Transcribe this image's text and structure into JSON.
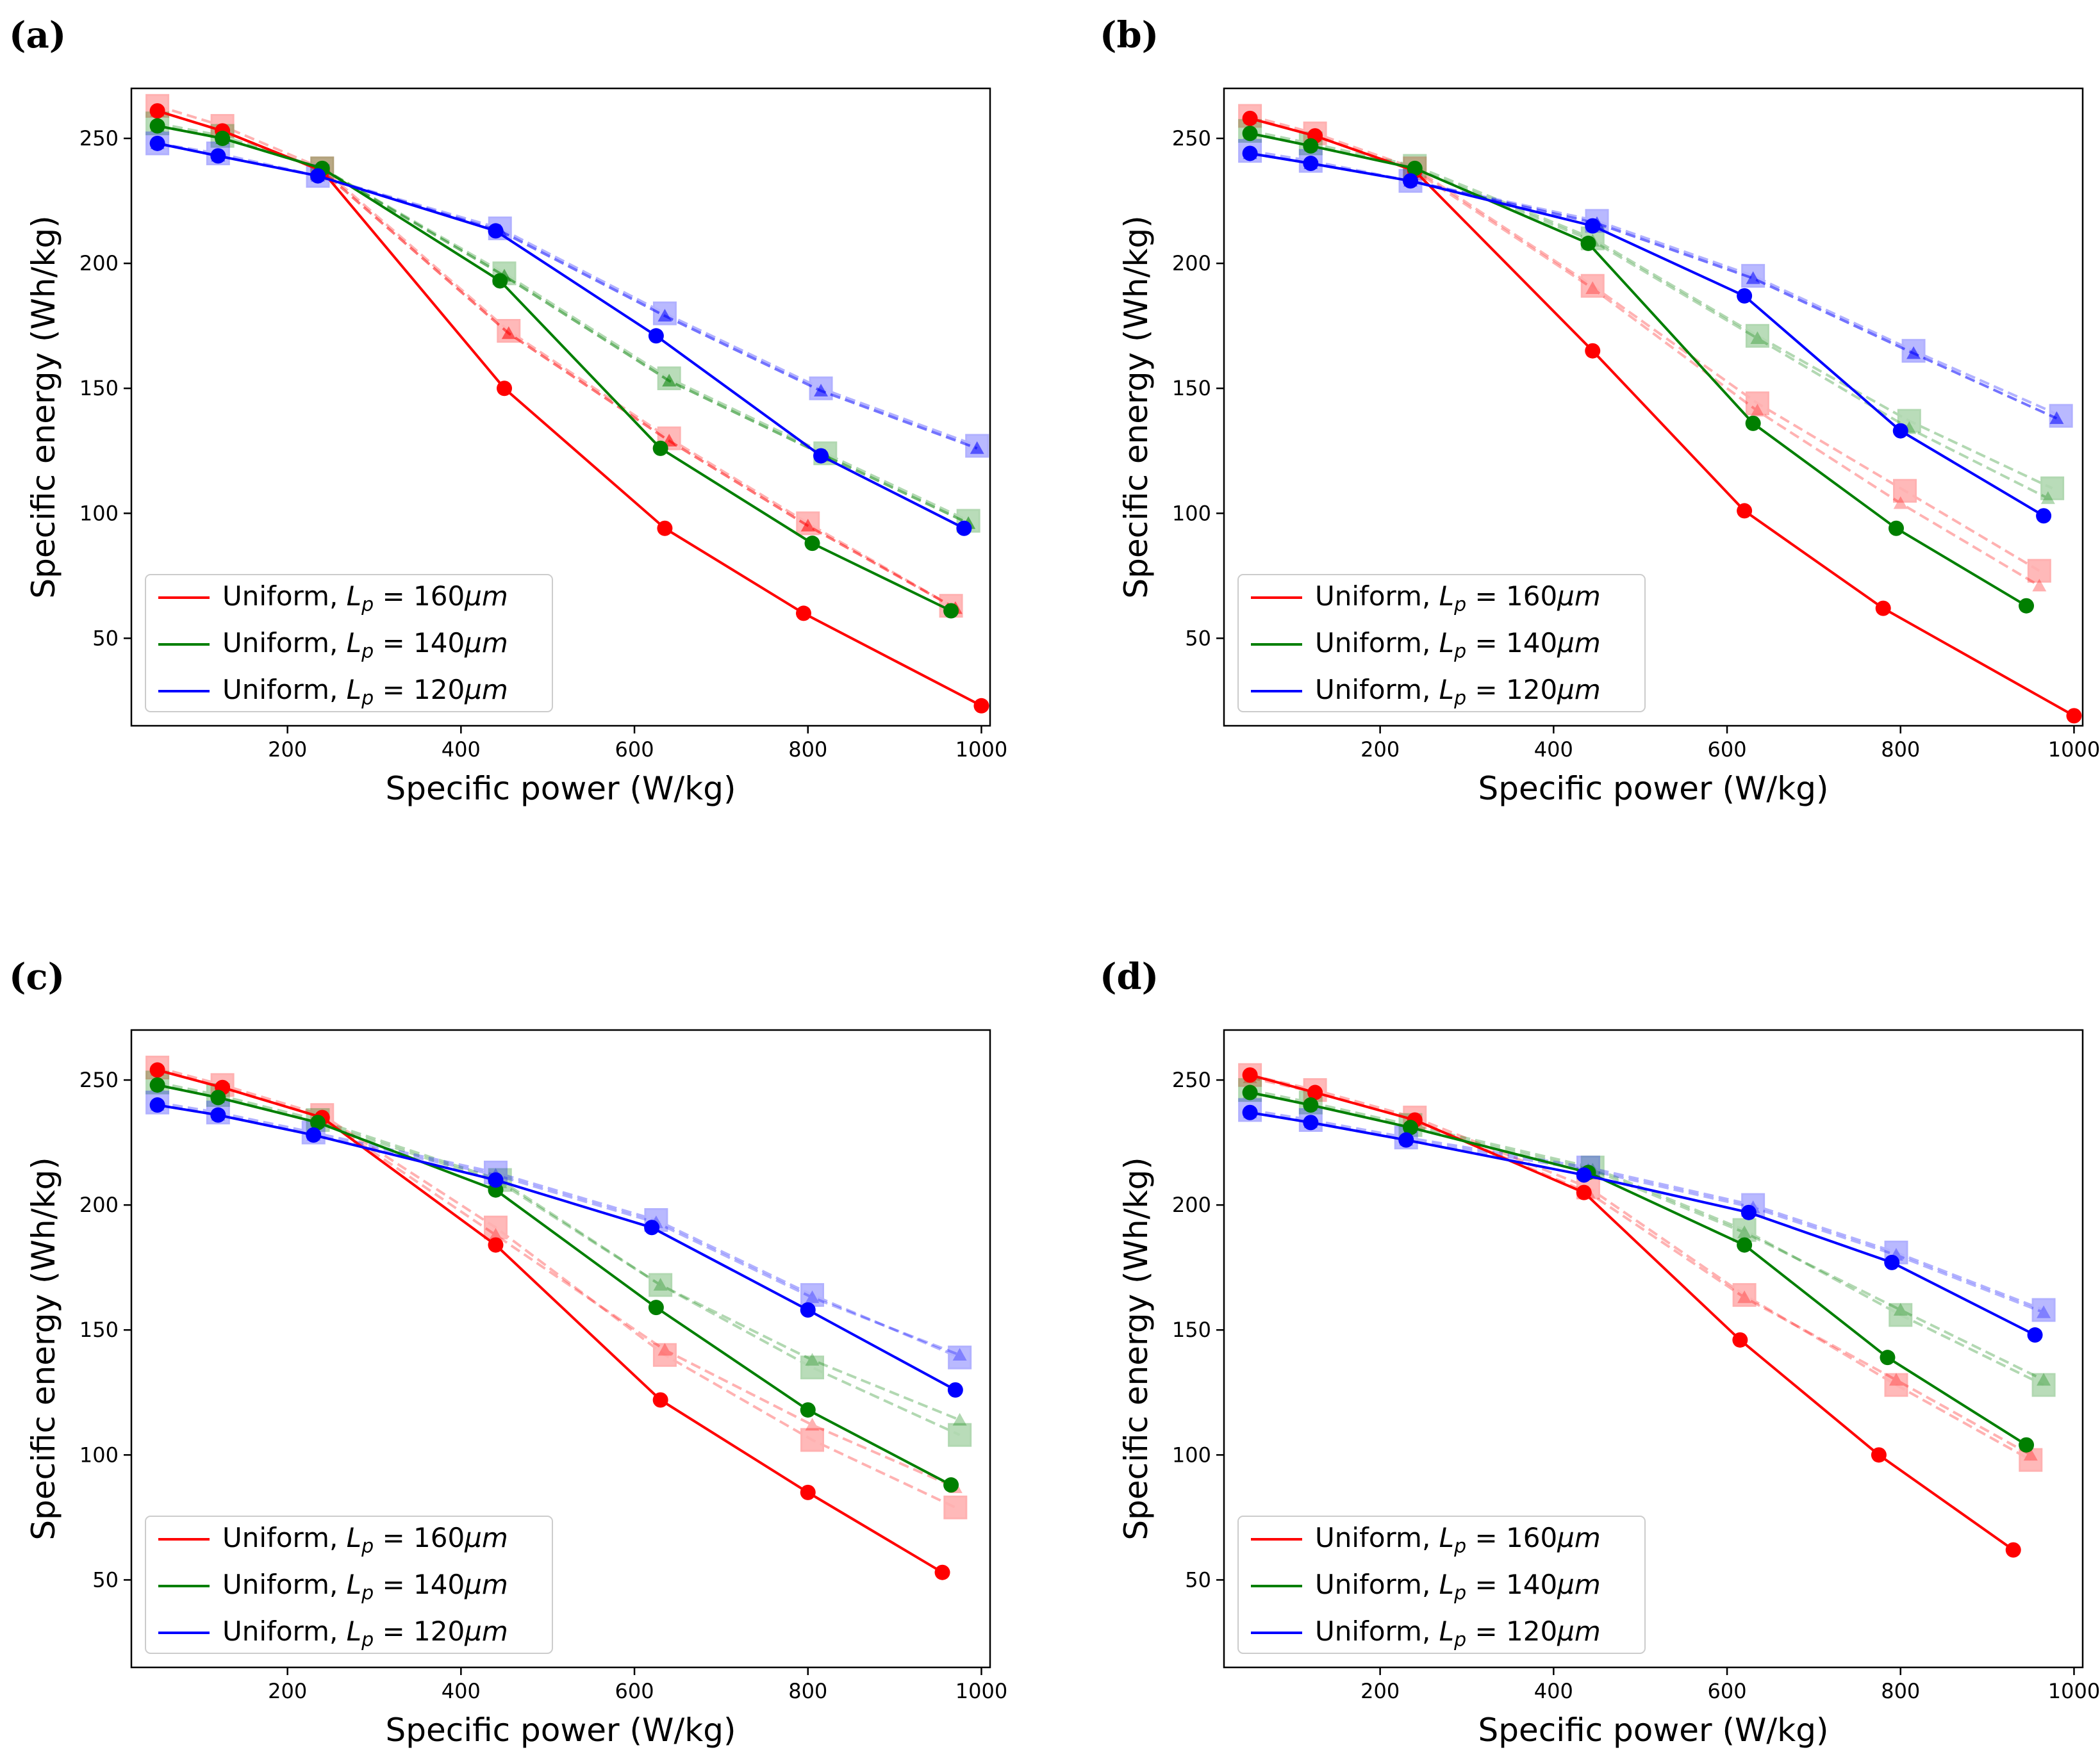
{
  "figure": {
    "panel_labels": [
      "(a)",
      "(b)",
      "(c)",
      "(d)"
    ],
    "colors": {
      "red": "#ff0000",
      "green": "#007f00",
      "blue": "#0000ff"
    },
    "legend_prefix": "Uniform, ",
    "legend_symbol": "L",
    "legend_subscript": "p",
    "legend_unit": "μm"
  },
  "chart_data": [
    {
      "type": "line",
      "panel": "(a)",
      "xlabel": "Specific power (W/kg)",
      "ylabel": "Specific energy (Wh/kg)",
      "xlim": [
        20,
        1010
      ],
      "ylim": [
        15,
        270
      ],
      "xticks": [
        200,
        400,
        600,
        800,
        1000
      ],
      "yticks": [
        50,
        100,
        150,
        200,
        250
      ],
      "legend": "lower-left",
      "series": [
        {
          "name": "Uniform, Lp = 160μm",
          "color": "red",
          "style": "solid",
          "marker": "circle",
          "x": [
            50,
            125,
            240,
            450,
            635,
            795,
            1000
          ],
          "y": [
            261,
            253,
            237,
            150,
            94,
            60,
            23
          ]
        },
        {
          "name": "Uniform, Lp = 140μm",
          "color": "green",
          "style": "solid",
          "marker": "circle",
          "x": [
            50,
            125,
            240,
            445,
            630,
            805,
            965
          ],
          "y": [
            255,
            250,
            238,
            193,
            126,
            88,
            61
          ]
        },
        {
          "name": "Uniform, Lp = 120μm",
          "color": "blue",
          "style": "solid",
          "marker": "circle",
          "x": [
            50,
            120,
            235,
            440,
            625,
            815,
            980
          ],
          "y": [
            248,
            243,
            235,
            213,
            171,
            123,
            94
          ]
        },
        {
          "color": "red",
          "style": "dashed",
          "marker": "square",
          "alpha": 0.3,
          "x": [
            50,
            125,
            240,
            455,
            640,
            800,
            965
          ],
          "y": [
            263,
            255,
            238,
            173,
            130,
            96,
            63
          ]
        },
        {
          "color": "red",
          "style": "dashed",
          "marker": "triangle",
          "alpha": 1,
          "x": [
            50,
            125,
            240,
            455,
            640,
            800,
            970
          ],
          "y": [
            261,
            253,
            237,
            172,
            129,
            95,
            62
          ]
        },
        {
          "color": "green",
          "style": "dashed",
          "marker": "square",
          "alpha": 0.3,
          "x": [
            50,
            125,
            240,
            450,
            640,
            820,
            985
          ],
          "y": [
            256,
            251,
            238,
            196,
            154,
            124,
            97
          ]
        },
        {
          "color": "green",
          "style": "dashed",
          "marker": "triangle",
          "alpha": 1,
          "x": [
            50,
            125,
            240,
            450,
            640,
            820,
            985
          ],
          "y": [
            255,
            250,
            238,
            195,
            153,
            123,
            96
          ]
        },
        {
          "color": "blue",
          "style": "dashed",
          "marker": "square",
          "alpha": 0.3,
          "x": [
            50,
            120,
            235,
            445,
            635,
            815,
            995
          ],
          "y": [
            248,
            244,
            235,
            214,
            180,
            150,
            127
          ]
        },
        {
          "color": "blue",
          "style": "dashed",
          "marker": "triangle",
          "alpha": 1,
          "x": [
            50,
            120,
            235,
            445,
            635,
            815,
            995
          ],
          "y": [
            248,
            243,
            235,
            213,
            179,
            149,
            126
          ]
        }
      ]
    },
    {
      "type": "line",
      "panel": "(b)",
      "xlabel": "Specific power (W/kg)",
      "ylabel": "Specific energy (Wh/kg)",
      "xlim": [
        20,
        1010
      ],
      "ylim": [
        15,
        270
      ],
      "xticks": [
        200,
        400,
        600,
        800,
        1000
      ],
      "yticks": [
        50,
        100,
        150,
        200,
        250
      ],
      "legend": "lower-left",
      "series": [
        {
          "name": "Uniform, Lp = 160μm",
          "color": "red",
          "style": "solid",
          "marker": "circle",
          "x": [
            50,
            125,
            240,
            445,
            620,
            780,
            1000
          ],
          "y": [
            258,
            251,
            237,
            165,
            101,
            62,
            19
          ]
        },
        {
          "name": "Uniform, Lp = 140μm",
          "color": "green",
          "style": "solid",
          "marker": "circle",
          "x": [
            50,
            120,
            240,
            440,
            630,
            795,
            945
          ],
          "y": [
            252,
            247,
            238,
            208,
            136,
            94,
            63
          ]
        },
        {
          "name": "Uniform, Lp = 120μm",
          "color": "blue",
          "style": "solid",
          "marker": "circle",
          "x": [
            50,
            120,
            235,
            445,
            620,
            800,
            965
          ],
          "y": [
            244,
            240,
            233,
            215,
            187,
            133,
            99
          ]
        },
        {
          "color": "red",
          "style": "dashed",
          "marker": "square",
          "alpha": 0.3,
          "x": [
            50,
            125,
            240,
            445,
            635,
            805,
            960
          ],
          "y": [
            259,
            252,
            238,
            191,
            144,
            109,
            77
          ]
        },
        {
          "color": "red",
          "style": "dashed",
          "marker": "triangle",
          "alpha": 0.3,
          "x": [
            50,
            125,
            240,
            445,
            635,
            800,
            960
          ],
          "y": [
            258,
            251,
            237,
            190,
            141,
            104,
            71
          ]
        },
        {
          "color": "green",
          "style": "dashed",
          "marker": "square",
          "alpha": 0.3,
          "x": [
            50,
            120,
            240,
            445,
            635,
            810,
            975
          ],
          "y": [
            253,
            248,
            239,
            210,
            171,
            137,
            110
          ]
        },
        {
          "color": "green",
          "style": "dashed",
          "marker": "triangle",
          "alpha": 0.3,
          "x": [
            50,
            120,
            240,
            445,
            635,
            810,
            970
          ],
          "y": [
            252,
            247,
            238,
            209,
            170,
            134,
            106
          ]
        },
        {
          "color": "blue",
          "style": "dashed",
          "marker": "square",
          "alpha": 0.3,
          "x": [
            50,
            120,
            235,
            450,
            630,
            815,
            985
          ],
          "y": [
            245,
            241,
            233,
            217,
            195,
            165,
            139
          ]
        },
        {
          "color": "blue",
          "style": "dashed",
          "marker": "triangle",
          "alpha": 1,
          "x": [
            50,
            120,
            235,
            450,
            630,
            815,
            980
          ],
          "y": [
            244,
            240,
            233,
            216,
            194,
            164,
            138
          ]
        }
      ]
    },
    {
      "type": "line",
      "panel": "(c)",
      "xlabel": "Specific power (W/kg)",
      "ylabel": "Specific energy (Wh/kg)",
      "xlim": [
        20,
        1010
      ],
      "ylim": [
        15,
        270
      ],
      "xticks": [
        200,
        400,
        600,
        800,
        1000
      ],
      "yticks": [
        50,
        100,
        150,
        200,
        250
      ],
      "legend": "lower-left",
      "series": [
        {
          "name": "Uniform, Lp = 160μm",
          "color": "red",
          "style": "solid",
          "marker": "circle",
          "x": [
            50,
            125,
            240,
            440,
            630,
            800,
            955
          ],
          "y": [
            254,
            247,
            235,
            184,
            122,
            85,
            53
          ]
        },
        {
          "name": "Uniform, Lp = 140μm",
          "color": "green",
          "style": "solid",
          "marker": "circle",
          "x": [
            50,
            120,
            235,
            440,
            625,
            800,
            965
          ],
          "y": [
            248,
            243,
            233,
            206,
            159,
            118,
            88
          ]
        },
        {
          "name": "Uniform, Lp = 120μm",
          "color": "blue",
          "style": "solid",
          "marker": "circle",
          "x": [
            50,
            120,
            230,
            440,
            620,
            800,
            970
          ],
          "y": [
            240,
            236,
            228,
            210,
            191,
            158,
            126
          ]
        },
        {
          "color": "red",
          "style": "dashed",
          "marker": "square",
          "alpha": 0.3,
          "x": [
            50,
            125,
            240,
            440,
            635,
            805,
            970
          ],
          "y": [
            255,
            248,
            236,
            191,
            140,
            106,
            79
          ]
        },
        {
          "color": "red",
          "style": "dashed",
          "marker": "triangle",
          "alpha": 0.3,
          "x": [
            50,
            125,
            240,
            440,
            635,
            805,
            970
          ],
          "y": [
            254,
            247,
            235,
            188,
            142,
            112,
            87
          ]
        },
        {
          "color": "green",
          "style": "dashed",
          "marker": "square",
          "alpha": 0.3,
          "x": [
            50,
            120,
            235,
            445,
            630,
            805,
            975
          ],
          "y": [
            249,
            244,
            234,
            210,
            168,
            135,
            108
          ]
        },
        {
          "color": "green",
          "style": "dashed",
          "marker": "triangle",
          "alpha": 0.3,
          "x": [
            50,
            120,
            235,
            445,
            630,
            805,
            975
          ],
          "y": [
            248,
            243,
            233,
            209,
            168,
            138,
            114
          ]
        },
        {
          "color": "blue",
          "style": "dashed",
          "marker": "square",
          "alpha": 0.3,
          "x": [
            50,
            120,
            230,
            440,
            625,
            805,
            975
          ],
          "y": [
            241,
            237,
            229,
            213,
            194,
            164,
            139
          ]
        },
        {
          "color": "blue",
          "style": "dashed",
          "marker": "triangle",
          "alpha": 0.3,
          "x": [
            50,
            120,
            230,
            440,
            625,
            805,
            975
          ],
          "y": [
            240,
            236,
            228,
            212,
            193,
            163,
            140
          ]
        }
      ]
    },
    {
      "type": "line",
      "panel": "(d)",
      "xlabel": "Specific power (W/kg)",
      "ylabel": "Specific energy (Wh/kg)",
      "xlim": [
        20,
        1010
      ],
      "ylim": [
        15,
        270
      ],
      "xticks": [
        200,
        400,
        600,
        800,
        1000
      ],
      "yticks": [
        50,
        100,
        150,
        200,
        250
      ],
      "legend": "lower-left",
      "series": [
        {
          "name": "Uniform, Lp = 160μm",
          "color": "red",
          "style": "solid",
          "marker": "circle",
          "x": [
            50,
            125,
            240,
            435,
            615,
            775,
            930
          ],
          "y": [
            252,
            245,
            234,
            205,
            146,
            100,
            62
          ]
        },
        {
          "name": "Uniform, Lp = 140μm",
          "color": "green",
          "style": "solid",
          "marker": "circle",
          "x": [
            50,
            120,
            235,
            440,
            620,
            785,
            945
          ],
          "y": [
            245,
            240,
            231,
            213,
            184,
            139,
            104
          ]
        },
        {
          "name": "Uniform, Lp = 120μm",
          "color": "blue",
          "style": "solid",
          "marker": "circle",
          "x": [
            50,
            120,
            230,
            435,
            625,
            790,
            955
          ],
          "y": [
            237,
            233,
            226,
            212,
            197,
            177,
            148
          ]
        },
        {
          "color": "red",
          "style": "dashed",
          "marker": "square",
          "alpha": 0.3,
          "x": [
            50,
            125,
            240,
            440,
            620,
            795,
            950
          ],
          "y": [
            252,
            246,
            235,
            207,
            164,
            128,
            98
          ]
        },
        {
          "color": "red",
          "style": "dashed",
          "marker": "triangle",
          "alpha": 0.3,
          "x": [
            50,
            125,
            240,
            440,
            620,
            795,
            950
          ],
          "y": [
            251,
            245,
            234,
            205,
            163,
            130,
            100
          ]
        },
        {
          "color": "green",
          "style": "dashed",
          "marker": "square",
          "alpha": 0.3,
          "x": [
            50,
            120,
            235,
            445,
            620,
            800,
            965
          ],
          "y": [
            246,
            241,
            232,
            215,
            190,
            156,
            128
          ]
        },
        {
          "color": "green",
          "style": "dashed",
          "marker": "triangle",
          "alpha": 0.3,
          "x": [
            50,
            120,
            235,
            445,
            620,
            800,
            965
          ],
          "y": [
            245,
            240,
            231,
            214,
            189,
            158,
            130
          ]
        },
        {
          "color": "blue",
          "style": "dashed",
          "marker": "square",
          "alpha": 0.3,
          "x": [
            50,
            120,
            230,
            440,
            630,
            795,
            965
          ],
          "y": [
            238,
            234,
            227,
            215,
            200,
            181,
            158
          ]
        },
        {
          "color": "blue",
          "style": "dashed",
          "marker": "triangle",
          "alpha": 0.3,
          "x": [
            50,
            120,
            230,
            440,
            630,
            795,
            965
          ],
          "y": [
            237,
            233,
            226,
            214,
            199,
            180,
            157
          ]
        }
      ]
    }
  ]
}
